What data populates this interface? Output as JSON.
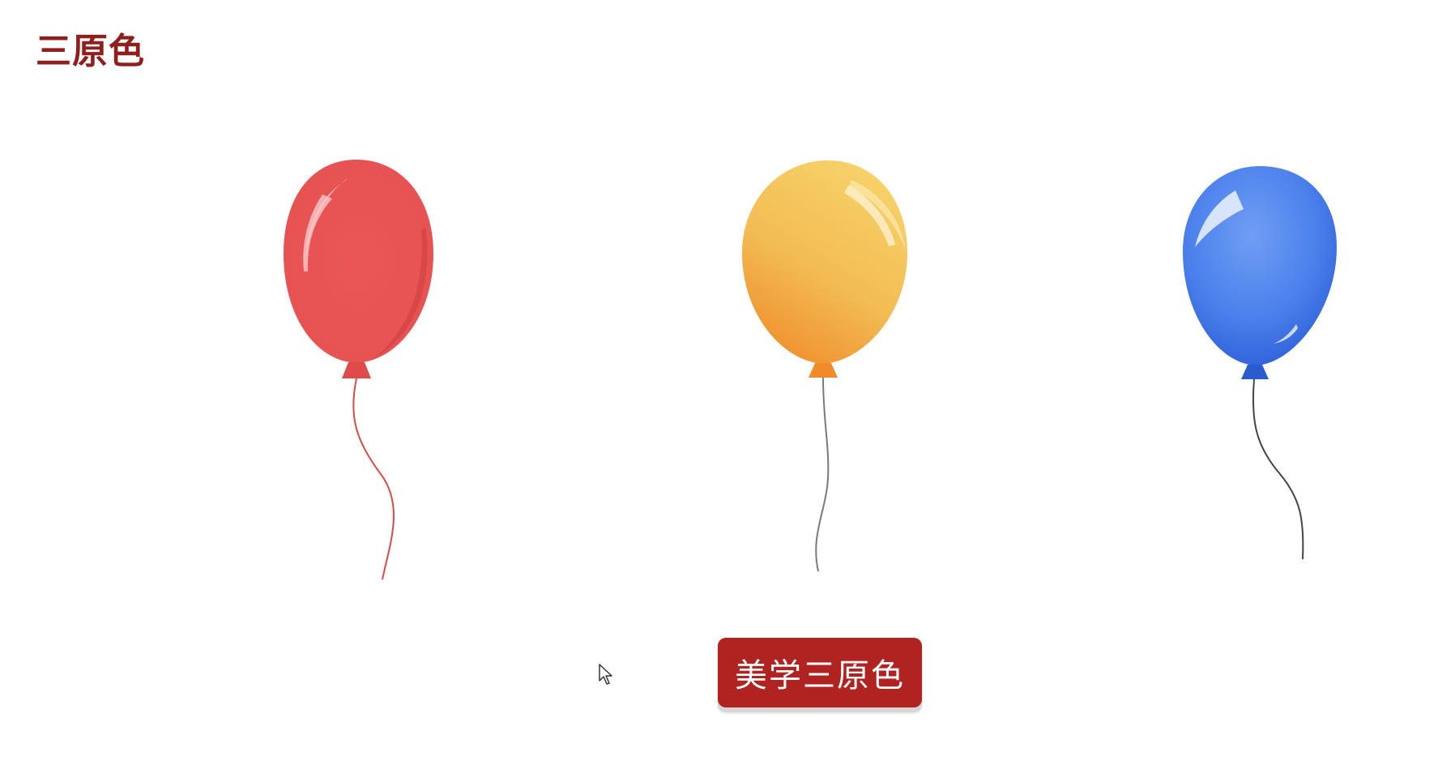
{
  "page": {
    "title": "三原色"
  },
  "balloons": [
    {
      "name": "red",
      "color": "#e95555"
    },
    {
      "name": "yellow",
      "color": "#f4b84a"
    },
    {
      "name": "blue",
      "color": "#4a7fe9"
    }
  ],
  "action": {
    "label": "美学三原色"
  },
  "colors": {
    "title": "#8e1f1c",
    "button": "#b12320"
  },
  "icons": {
    "cursor": "mouse-pointer-icon"
  }
}
